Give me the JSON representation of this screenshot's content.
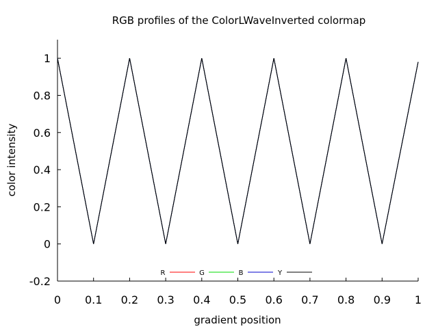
{
  "chart_data": {
    "type": "line",
    "title": "RGB profiles of the ColorLWaveInverted colormap",
    "xlabel": "gradient position",
    "ylabel": "color intensity",
    "xlim": [
      0,
      1
    ],
    "ylim": [
      -0.2,
      1.1
    ],
    "xticks": [
      0,
      0.1,
      0.2,
      0.3,
      0.4,
      0.5,
      0.6,
      0.7,
      0.8,
      0.9,
      1
    ],
    "xtick_labels": [
      "0",
      "0.1",
      "0.2",
      "0.3",
      "0.4",
      "0.5",
      "0.6",
      "0.7",
      "0.8",
      "0.9",
      "1"
    ],
    "yticks": [
      -0.2,
      0,
      0.2,
      0.4,
      0.6,
      0.8,
      1
    ],
    "ytick_labels": [
      "-0.2",
      "0",
      "0.2",
      "0.4",
      "0.6",
      "0.8",
      "1"
    ],
    "grid": false,
    "legend_position": "bottom-center",
    "x": [
      0,
      0.1,
      0.2,
      0.3,
      0.4,
      0.5,
      0.6,
      0.7,
      0.8,
      0.9,
      1
    ],
    "series": [
      {
        "name": "R",
        "color": "#ff0000",
        "values": [
          1,
          0,
          1,
          0,
          1,
          0,
          1,
          0,
          1,
          0,
          0.98
        ]
      },
      {
        "name": "G",
        "color": "#00dd00",
        "values": [
          1,
          0,
          1,
          0,
          1,
          0,
          1,
          0,
          1,
          0,
          0.98
        ]
      },
      {
        "name": "B",
        "color": "#0000cc",
        "values": [
          1,
          0,
          1,
          0,
          1,
          0,
          1,
          0,
          1,
          0,
          0.98
        ]
      },
      {
        "name": "Y",
        "color": "#000000",
        "values": [
          1,
          0,
          1,
          0,
          1,
          0,
          1,
          0,
          1,
          0,
          0.98
        ]
      }
    ]
  }
}
